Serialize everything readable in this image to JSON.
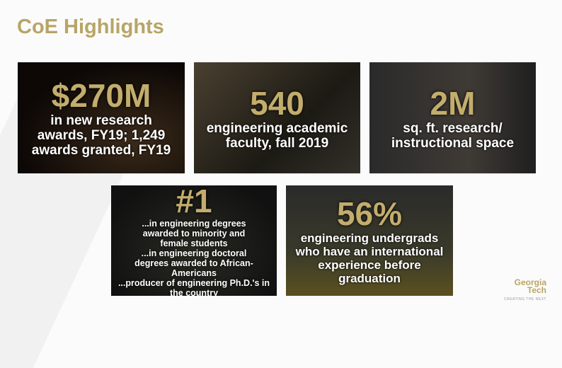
{
  "title": "CoE Highlights",
  "cards": [
    {
      "stat": "$270M",
      "text": "in new research awards, FY19; 1,249 awards granted, FY19"
    },
    {
      "stat": "540",
      "text": "engineering academic faculty, fall 2019"
    },
    {
      "stat": "2M",
      "text": "sq. ft. research/ instructional space"
    },
    {
      "stat": "#1",
      "lines": [
        "...in engineering degrees awarded to minority and female students",
        "...in engineering doctoral degrees awarded to African-Americans",
        "...producer of engineering Ph.D.'s in the country"
      ]
    },
    {
      "stat": "56%",
      "text": "engineering undergrads who have an international experience before graduation"
    }
  ],
  "logo": {
    "line1": "Georgia",
    "line2": "Tech",
    "tagline": "CREATING THE NEXT"
  }
}
